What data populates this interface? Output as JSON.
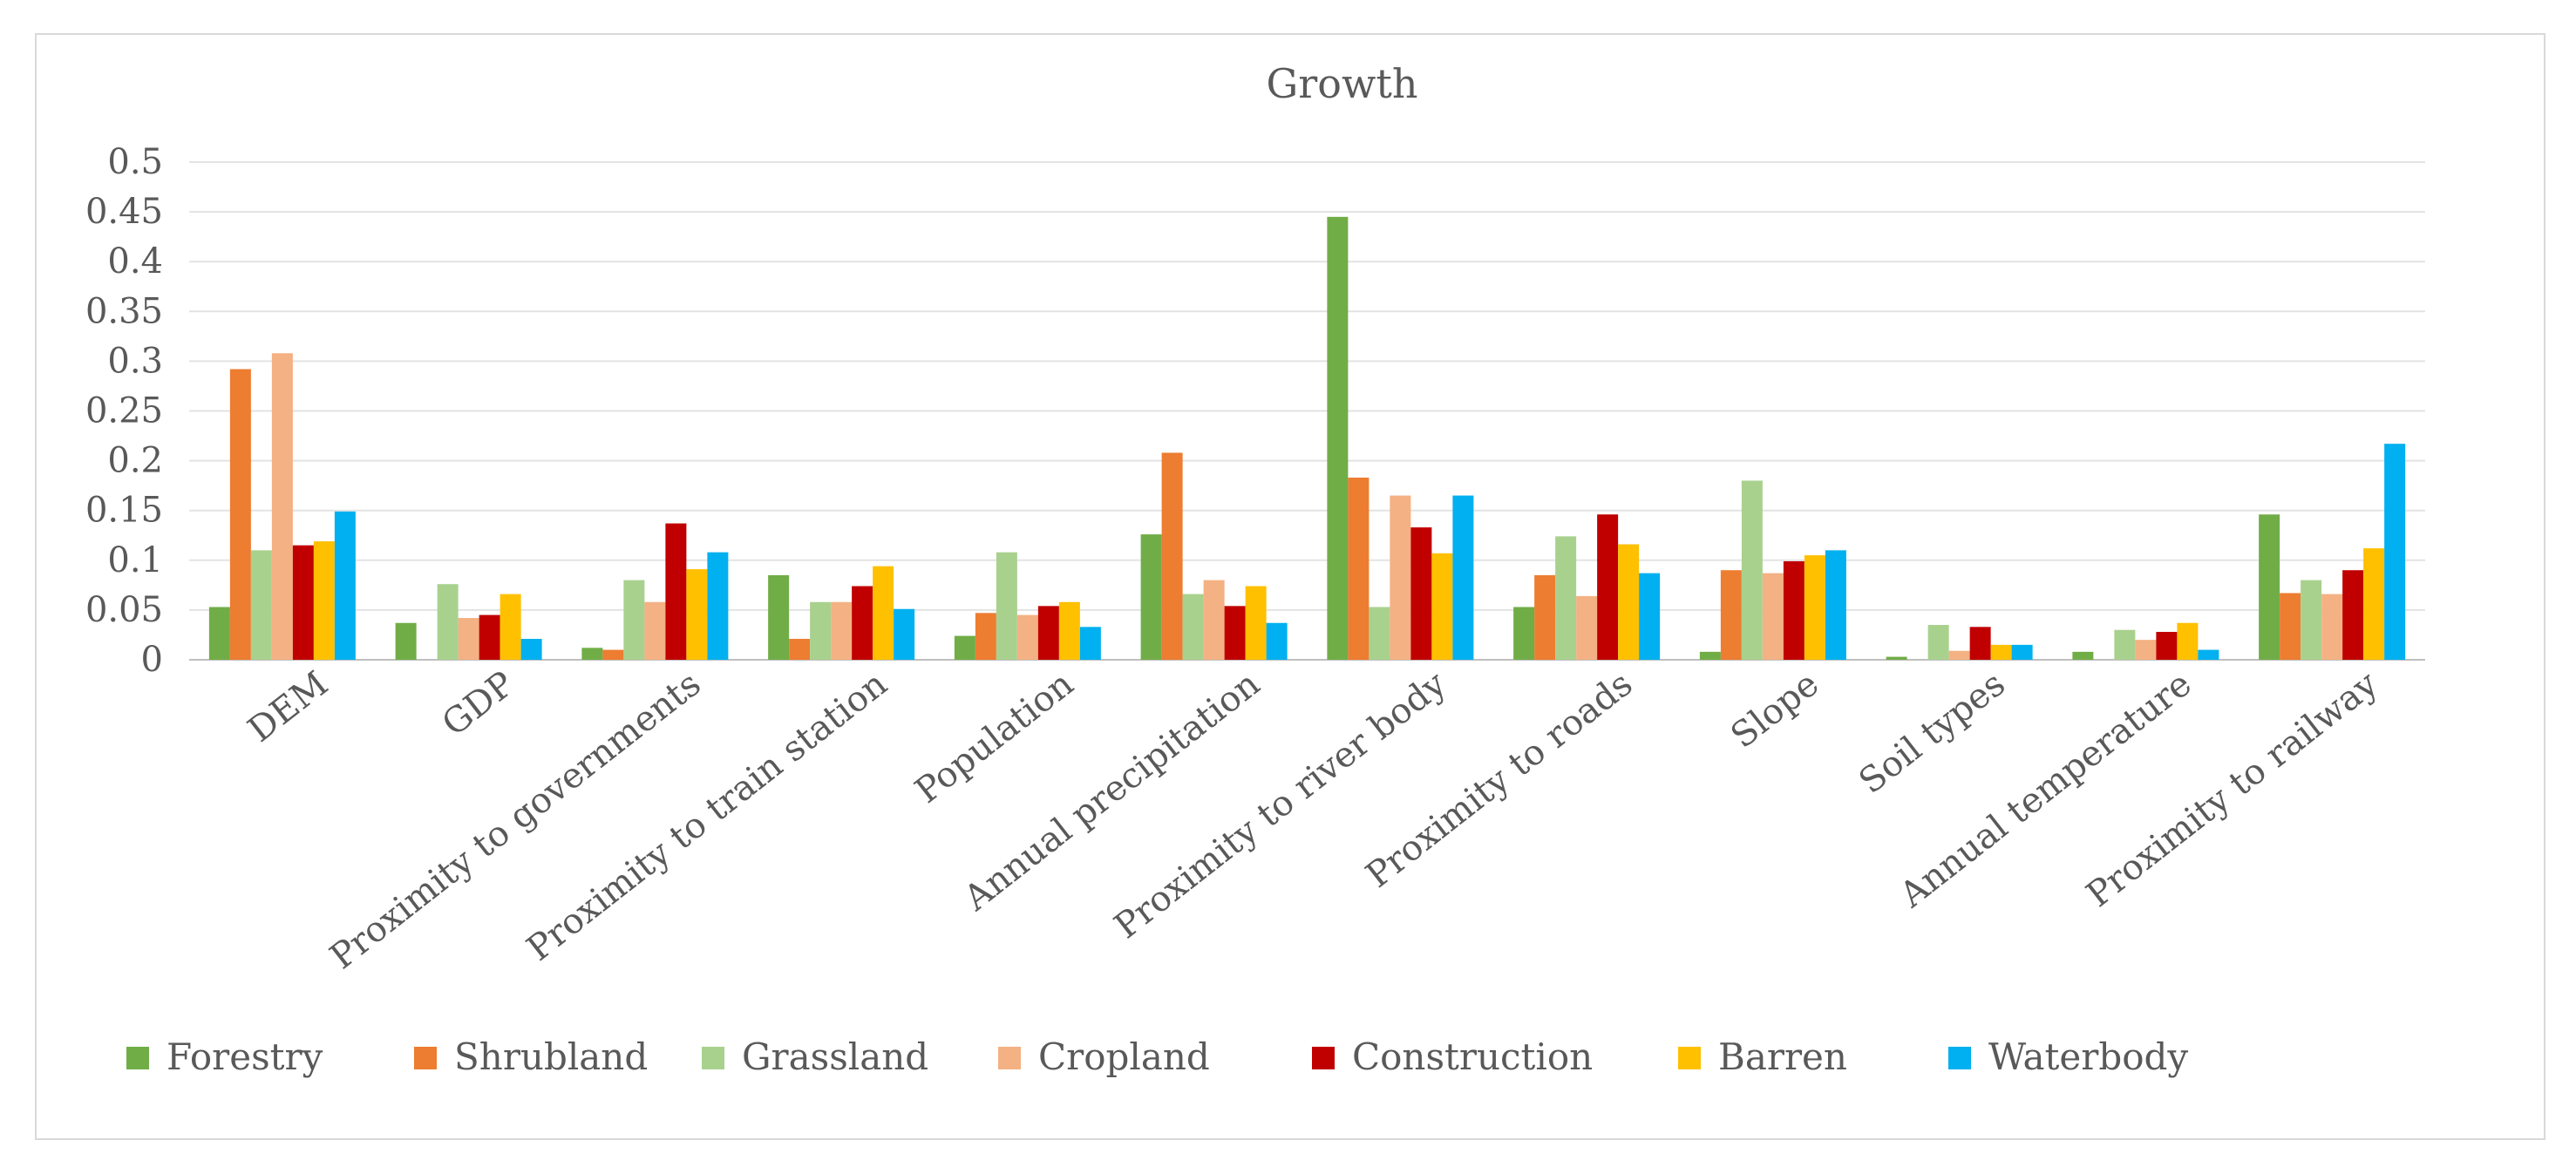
{
  "chart_data": {
    "type": "bar",
    "title": "Growth",
    "xlabel": "",
    "ylabel": "",
    "ylim": [
      0,
      0.5
    ],
    "yticks": [
      "0",
      "0.05",
      "0.1",
      "0.15",
      "0.2",
      "0.25",
      "0.3",
      "0.35",
      "0.4",
      "0.45",
      "0.5"
    ],
    "grid": true,
    "legend_position": "bottom",
    "categories": [
      "DEM",
      "GDP",
      "Proximity to governments",
      "Proximity to train station",
      "Population",
      "Annual precipitation",
      "Proximity to river body",
      "Proximity to roads",
      "Slope",
      "Soil types",
      "Annual temperature",
      "Proximity to railway"
    ],
    "series": [
      {
        "name": "Forestry",
        "color": "#70ad47",
        "values": [
          0.053,
          0.037,
          0.012,
          0.085,
          0.024,
          0.126,
          0.445,
          0.053,
          0.008,
          0.003,
          0.008,
          0.146
        ]
      },
      {
        "name": "Shrubland",
        "color": "#ed7d31",
        "values": [
          0.292,
          0.0,
          0.01,
          0.021,
          0.047,
          0.208,
          0.183,
          0.085,
          0.09,
          0.0,
          0.0,
          0.067
        ]
      },
      {
        "name": "Grassland",
        "color": "#a9d18e",
        "values": [
          0.11,
          0.076,
          0.08,
          0.058,
          0.108,
          0.066,
          0.053,
          0.124,
          0.18,
          0.035,
          0.03,
          0.08
        ]
      },
      {
        "name": "Cropland",
        "color": "#f4b183",
        "values": [
          0.308,
          0.042,
          0.058,
          0.058,
          0.045,
          0.08,
          0.165,
          0.064,
          0.087,
          0.009,
          0.02,
          0.066
        ]
      },
      {
        "name": "Construction",
        "color": "#c00000",
        "values": [
          0.115,
          0.045,
          0.137,
          0.074,
          0.054,
          0.054,
          0.133,
          0.146,
          0.099,
          0.033,
          0.028,
          0.09
        ]
      },
      {
        "name": "Barren",
        "color": "#ffc000",
        "values": [
          0.119,
          0.066,
          0.091,
          0.094,
          0.058,
          0.074,
          0.107,
          0.116,
          0.105,
          0.015,
          0.037,
          0.112
        ]
      },
      {
        "name": "Waterbody",
        "color": "#00b0f0",
        "values": [
          0.149,
          0.021,
          0.108,
          0.051,
          0.033,
          0.037,
          0.165,
          0.087,
          0.11,
          0.015,
          0.01,
          0.217
        ]
      }
    ]
  }
}
